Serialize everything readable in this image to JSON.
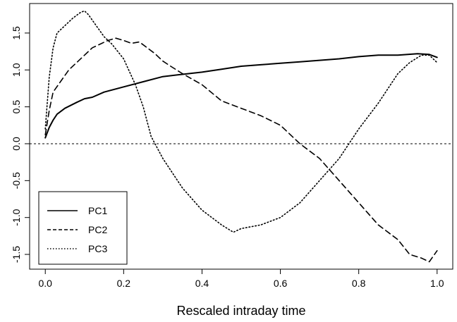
{
  "chart_data": {
    "type": "line",
    "title": "",
    "xlabel": "Rescaled intraday time",
    "ylabel": "",
    "xlim": [
      -0.04,
      1.04
    ],
    "ylim": [
      -1.7,
      1.9
    ],
    "x_ticks": [
      0.0,
      0.2,
      0.4,
      0.6,
      0.8,
      1.0
    ],
    "x_tick_labels": [
      "0.0",
      "0.2",
      "0.4",
      "0.6",
      "0.8",
      "1.0"
    ],
    "y_ticks": [
      -1.5,
      -1.0,
      -0.5,
      0.0,
      0.5,
      1.0,
      1.5
    ],
    "y_tick_labels": [
      "-1.5",
      "-1.0",
      "-0.5",
      "0.0",
      "0.5",
      "1.0",
      "1.5"
    ],
    "reference_line": {
      "y": 0.0,
      "style": "dotted"
    },
    "grid": false,
    "legend": {
      "position": "bottom-left"
    },
    "series": [
      {
        "name": "PC1",
        "line_style": "solid",
        "x": [
          0.0,
          0.01,
          0.02,
          0.03,
          0.05,
          0.08,
          0.1,
          0.12,
          0.15,
          0.2,
          0.25,
          0.3,
          0.35,
          0.4,
          0.45,
          0.5,
          0.55,
          0.6,
          0.65,
          0.7,
          0.75,
          0.8,
          0.85,
          0.9,
          0.95,
          0.98,
          1.0
        ],
        "values": [
          0.08,
          0.22,
          0.32,
          0.4,
          0.48,
          0.56,
          0.61,
          0.63,
          0.7,
          0.77,
          0.84,
          0.91,
          0.94,
          0.97,
          1.01,
          1.05,
          1.07,
          1.09,
          1.11,
          1.13,
          1.15,
          1.18,
          1.2,
          1.2,
          1.22,
          1.21,
          1.17
        ]
      },
      {
        "name": "PC2",
        "line_style": "dashed",
        "x": [
          0.0,
          0.01,
          0.02,
          0.04,
          0.06,
          0.08,
          0.1,
          0.12,
          0.14,
          0.16,
          0.18,
          0.2,
          0.22,
          0.24,
          0.26,
          0.28,
          0.3,
          0.32,
          0.35,
          0.4,
          0.45,
          0.5,
          0.55,
          0.6,
          0.65,
          0.7,
          0.75,
          0.8,
          0.85,
          0.9,
          0.93,
          0.96,
          0.98,
          1.0
        ],
        "values": [
          0.12,
          0.45,
          0.7,
          0.85,
          1.0,
          1.1,
          1.2,
          1.3,
          1.35,
          1.4,
          1.43,
          1.4,
          1.36,
          1.38,
          1.3,
          1.22,
          1.12,
          1.05,
          0.95,
          0.8,
          0.58,
          0.48,
          0.38,
          0.25,
          0.0,
          -0.2,
          -0.5,
          -0.8,
          -1.1,
          -1.3,
          -1.5,
          -1.55,
          -1.6,
          -1.45
        ]
      },
      {
        "name": "PC3",
        "line_style": "dotted",
        "x": [
          0.0,
          0.01,
          0.02,
          0.03,
          0.05,
          0.07,
          0.09,
          0.1,
          0.11,
          0.13,
          0.15,
          0.17,
          0.2,
          0.23,
          0.25,
          0.27,
          0.3,
          0.35,
          0.4,
          0.45,
          0.48,
          0.5,
          0.55,
          0.6,
          0.65,
          0.7,
          0.75,
          0.8,
          0.85,
          0.9,
          0.93,
          0.96,
          0.98,
          1.0
        ],
        "values": [
          0.2,
          0.9,
          1.3,
          1.5,
          1.6,
          1.7,
          1.78,
          1.8,
          1.75,
          1.6,
          1.45,
          1.35,
          1.15,
          0.8,
          0.5,
          0.1,
          -0.2,
          -0.6,
          -0.9,
          -1.1,
          -1.2,
          -1.15,
          -1.1,
          -1.0,
          -0.8,
          -0.5,
          -0.2,
          0.2,
          0.55,
          0.95,
          1.1,
          1.2,
          1.2,
          1.1
        ]
      }
    ]
  }
}
